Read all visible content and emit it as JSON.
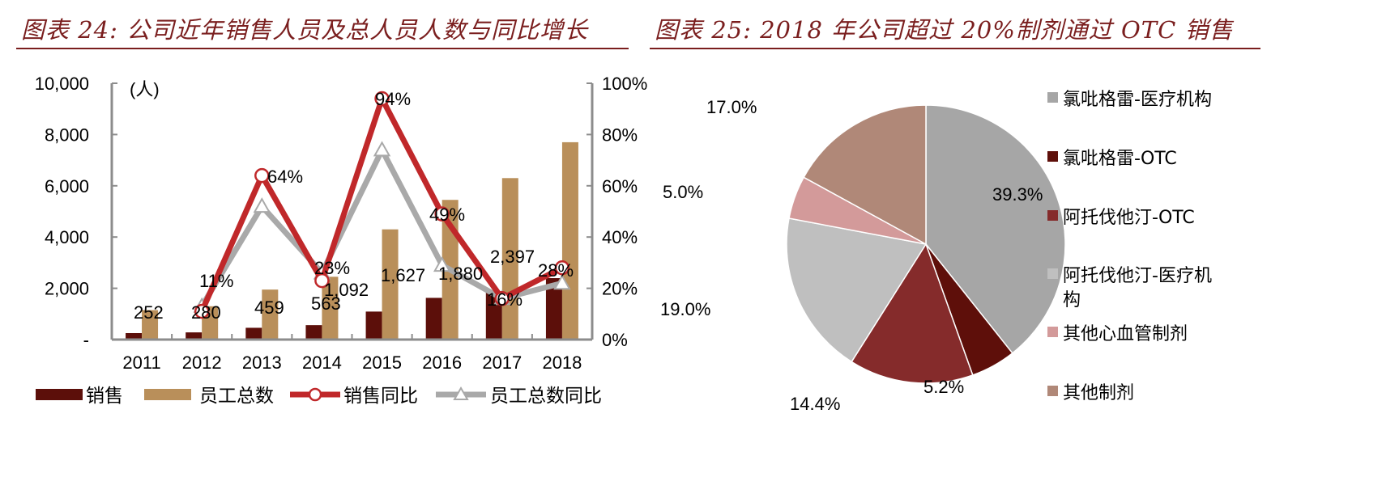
{
  "left": {
    "title": "图表 24:  公司近年销售人员及总人员人数与同比增长",
    "unit_label": "(人)",
    "y_left_ticks": [
      "-",
      "2,000",
      "4,000",
      "6,000",
      "8,000",
      "10,000"
    ],
    "y_right_ticks": [
      "0%",
      "20%",
      "40%",
      "60%",
      "80%",
      "100%"
    ],
    "legend": [
      "销售",
      "员工总数",
      "销售同比",
      "员工总数同比"
    ]
  },
  "right": {
    "title": "图表 25: 2018 年公司超过 20%制剂通过 OTC 销售",
    "legend": [
      "氯吡格雷-医疗机构",
      "氯吡格雷-OTC",
      "阿托伐他汀-OTC",
      "阿托伐他汀-医疗机",
      "构",
      "其他心血管制剂",
      "其他制剂"
    ]
  },
  "colors": {
    "title": "#7a1e1e",
    "sales_bar": "#5c0f0a",
    "total_bar": "#b98f5a",
    "sales_yoy_line": "#c0282a",
    "total_yoy_line": "#a9a9a9",
    "axis": "#8c8c8c"
  },
  "chart_data": [
    {
      "type": "bar",
      "title": "图表 24:  公司近年销售人员及总人员人数与同比增长",
      "xlabel": "",
      "ylabel": "(人)",
      "ylabel_right": "%",
      "ylim": [
        0,
        10000
      ],
      "ylim_right": [
        0,
        100
      ],
      "categories": [
        "2011",
        "2012",
        "2013",
        "2014",
        "2015",
        "2016",
        "2017",
        "2018"
      ],
      "series": [
        {
          "name": "销售",
          "type": "bar",
          "axis": "left",
          "values": [
            252,
            280,
            459,
            563,
            1092,
            1627,
            1880,
            2397
          ],
          "labels": [
            "252",
            "280",
            "459",
            "563",
            "1,092",
            "1,627",
            "1,880",
            "2,397"
          ]
        },
        {
          "name": "员工总数",
          "type": "bar",
          "axis": "left",
          "values": [
            1150,
            1300,
            1950,
            2450,
            4300,
            5450,
            6300,
            7700
          ]
        },
        {
          "name": "销售同比",
          "type": "line",
          "axis": "right",
          "values": [
            null,
            11,
            64,
            23,
            94,
            49,
            16,
            28
          ],
          "labels": [
            "",
            "11%",
            "64%",
            "23%",
            "94%",
            "49%",
            "16%",
            "28%"
          ]
        },
        {
          "name": "员工总数同比",
          "type": "line",
          "axis": "right",
          "values": [
            null,
            13,
            52,
            26,
            74,
            29,
            16,
            22
          ]
        }
      ],
      "legend_position": "bottom",
      "grid": false
    },
    {
      "type": "pie",
      "title": "图表 25: 2018 年公司超过 20%制剂通过 OTC 销售",
      "categories": [
        "氯吡格雷-医疗机构",
        "氯吡格雷-OTC",
        "阿托伐他汀-OTC",
        "阿托伐他汀-医疗机构",
        "其他心血管制剂",
        "其他制剂"
      ],
      "values": [
        39.3,
        5.2,
        14.4,
        19.0,
        5.0,
        17.0
      ],
      "labels": [
        "39.3%",
        "5.2%",
        "14.4%",
        "19.0%",
        "5.0%",
        "17.0%"
      ],
      "colors": [
        "#a6a6a6",
        "#5e0f0a",
        "#852b2b",
        "#bfbfbf",
        "#d39a9a",
        "#b08878"
      ],
      "start_angle": "12 o'clock, clockwise",
      "legend_position": "right"
    }
  ]
}
